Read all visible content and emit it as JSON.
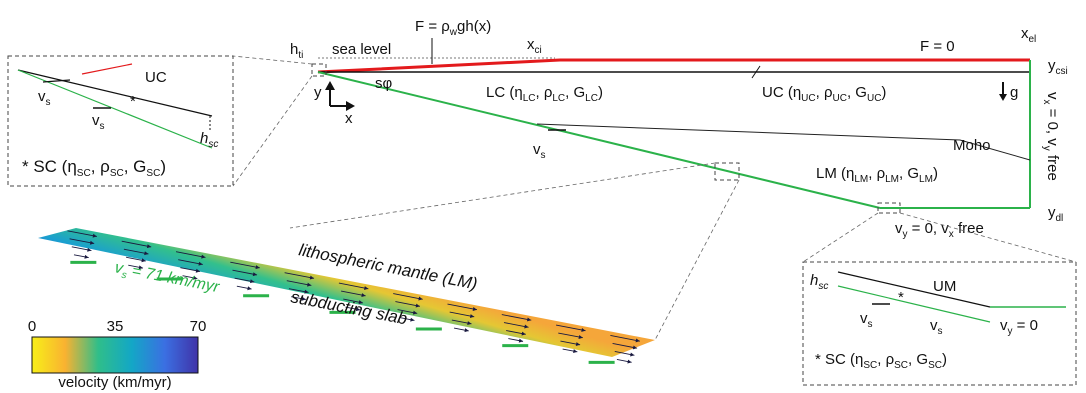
{
  "colors": {
    "crust_top": "#e31a1c",
    "slab": "#2bb24a",
    "line": "#111111"
  },
  "main": {
    "h_ti": {
      "base": "h",
      "sub": "ti"
    },
    "sea_level": "sea level",
    "load": {
      "pre": "F = ρ",
      "sub1": "w",
      "post": "gh(x)"
    },
    "x_ci": {
      "base": "x",
      "sub": "ci"
    },
    "F_zero": "F = 0",
    "x_el": {
      "base": "x",
      "sub": "el"
    },
    "y_csi": {
      "base": "y",
      "sub": "csi"
    },
    "y_dl": {
      "base": "y",
      "sub": "dl"
    },
    "axis_y": "y",
    "axis_x": "x",
    "dip": "sφ",
    "g": "g",
    "lc": {
      "pre": "LC (η",
      "s1": "LC",
      "m1": ", ρ",
      "s2": "LC",
      "m2": ", G",
      "s3": "LC",
      "post": ")"
    },
    "uc": {
      "pre": "UC (η",
      "s1": "UC",
      "m1": ", ρ",
      "s2": "UC",
      "m2": ", G",
      "s3": "UC",
      "post": ")"
    },
    "lm": {
      "pre": "LM (η",
      "s1": "LM",
      "m1": ", ρ",
      "s2": "LM",
      "m2": ", G",
      "s3": "LM",
      "post": ")"
    },
    "moho": "Moho",
    "vs": {
      "base": "v",
      "sub": "s"
    },
    "right_bc": {
      "p1": "v",
      "s1": "x",
      "p2": " = 0, v",
      "s2": "y",
      "p3": " free"
    },
    "bottom_bc": {
      "p1": "v",
      "s1": "y",
      "p2": " = 0, v",
      "s2": "x",
      "p3": " free"
    }
  },
  "inset_left": {
    "uc": "UC",
    "star": "*",
    "vs": {
      "base": "v",
      "sub": "s"
    },
    "h": {
      "base": "h",
      "sub": "sc"
    },
    "legend": {
      "pre": "* SC (η",
      "s1": "SC",
      "m1": ", ρ",
      "s2": "SC",
      "m2": ", G",
      "s3": "SC",
      "post": ")"
    }
  },
  "inset_right": {
    "um": "UM",
    "star": "*",
    "h": {
      "base": "h",
      "sub": "sc"
    },
    "vs": {
      "base": "v",
      "sub": "s"
    },
    "vy": {
      "p1": "v",
      "s1": "y",
      "p2": " = 0"
    },
    "legend": {
      "pre": "* SC (η",
      "s1": "SC",
      "m1": ", ρ",
      "s2": "SC",
      "m2": ", G",
      "s3": "SC",
      "post": ")"
    }
  },
  "zoom": {
    "lm_label": "lithospheric mantle (LM)",
    "slab_label": "subducting slab",
    "vs_value": {
      "base": "v",
      "sub": "s",
      "post": " = 71 km/myr"
    }
  },
  "colorbar": {
    "ticks": [
      "0",
      "35",
      "70"
    ],
    "label": "velocity (km/myr)",
    "range": [
      0,
      70
    ]
  }
}
